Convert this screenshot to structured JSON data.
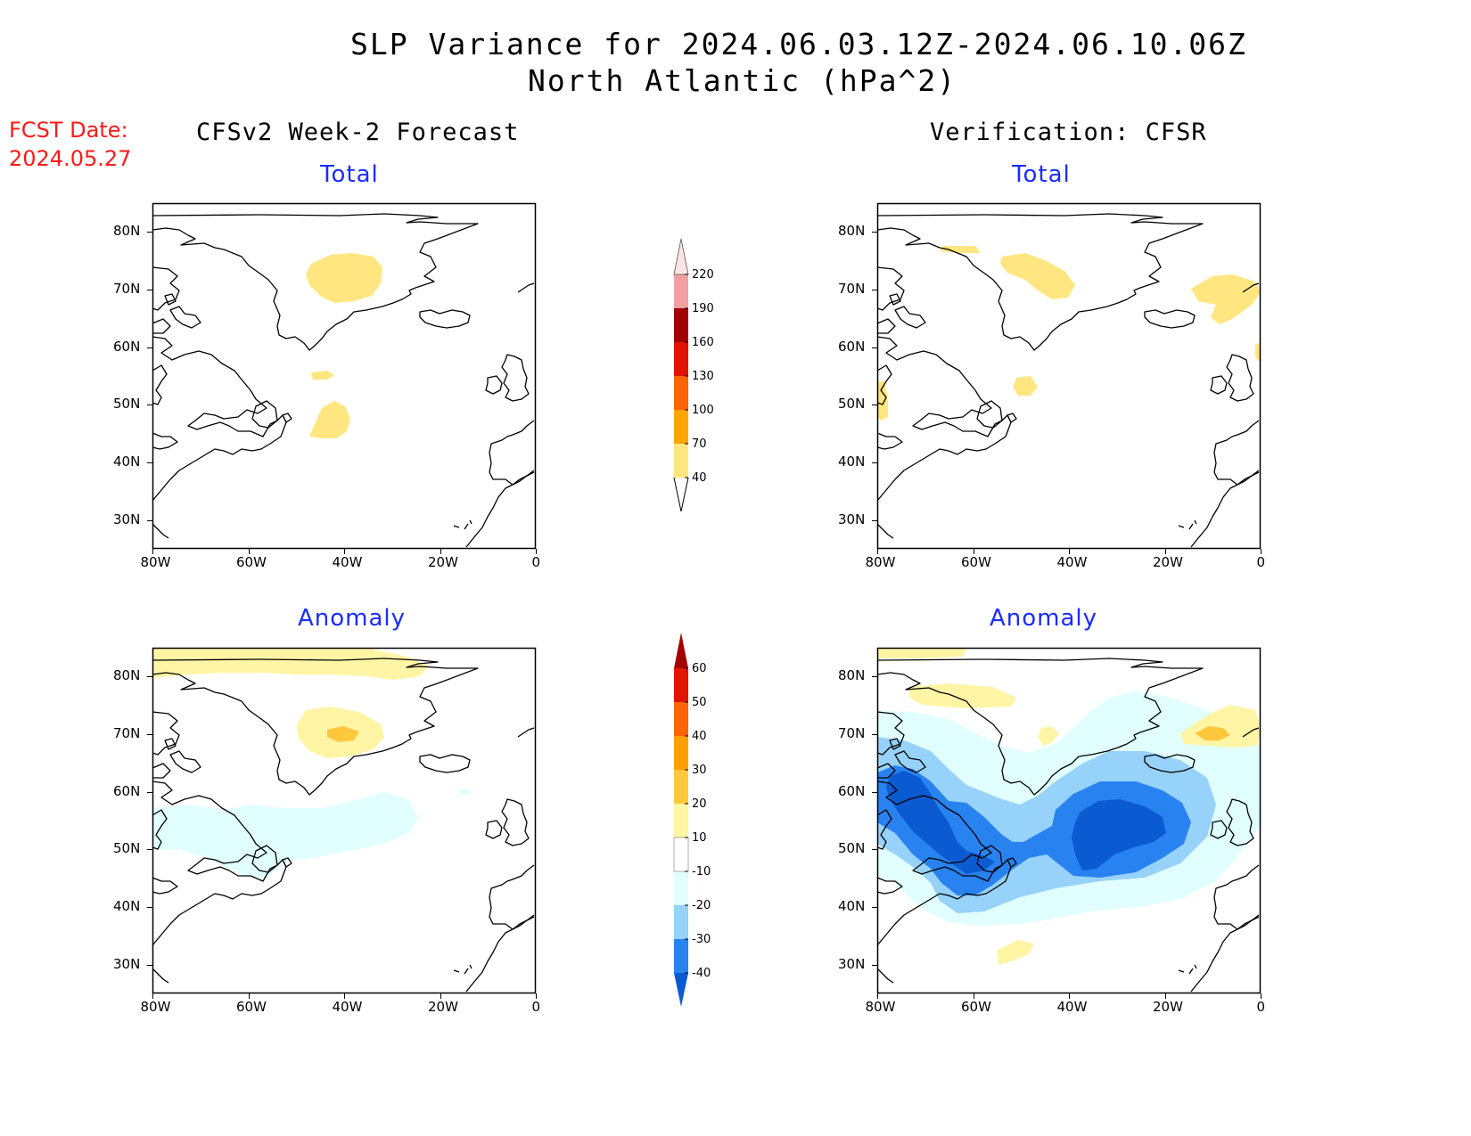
{
  "header": {
    "title_line1": "SLP Variance for 2024.06.03.12Z-2024.06.10.06Z",
    "title_line2": "North Atlantic (hPa^2)"
  },
  "fcst": {
    "label": "FCST Date:",
    "date": "2024.05.27"
  },
  "columns": {
    "left": "CFSv2 Week-2 Forecast",
    "right": "Verification: CFSR"
  },
  "subtitles": {
    "top_left": "Total",
    "top_right": "Total",
    "bottom_left": "Anomaly",
    "bottom_right": "Anomaly"
  },
  "subtitle_color": "#1a2cff",
  "axes": {
    "lat_labels": [
      "80N",
      "70N",
      "60N",
      "50N",
      "40N",
      "30N"
    ],
    "lon_labels": [
      "80W",
      "60W",
      "40W",
      "20W",
      "0"
    ],
    "lat_range": [
      25,
      85
    ],
    "lon_range": [
      -80,
      0
    ]
  },
  "colorbars": {
    "total": {
      "ticks": [
        "40",
        "70",
        "100",
        "130",
        "160",
        "190",
        "220"
      ],
      "colors": [
        "#ffe680",
        "#ffa500",
        "#ff6400",
        "#e01400",
        "#a00000",
        "#f0a0a0",
        "#fde4e4"
      ]
    },
    "anomaly": {
      "ticks": [
        "-40",
        "-30",
        "-20",
        "-10",
        "10",
        "20",
        "30",
        "40",
        "50",
        "60"
      ],
      "colors": [
        "#0a5ad2",
        "#2882f0",
        "#96d2fa",
        "#e1ffff",
        "#ffffff",
        "#fff5a5",
        "#ffc83c",
        "#ffa000",
        "#ff6400",
        "#e11400",
        "#a50000"
      ]
    }
  }
}
